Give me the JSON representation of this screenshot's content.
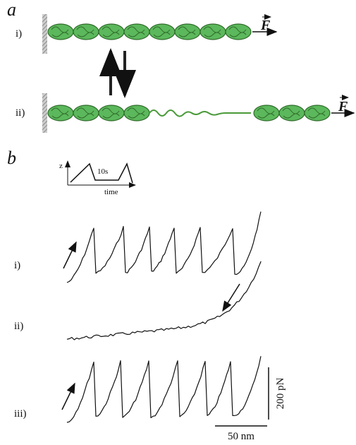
{
  "panel_a": {
    "label": "a",
    "rows": [
      {
        "label": "i)",
        "force": "F"
      },
      {
        "label": "ii)",
        "force": "F"
      }
    ]
  },
  "panel_b": {
    "label": "b",
    "inset": {
      "z_axis": "z",
      "interval": "10s",
      "time_axis": "time"
    },
    "traces": [
      {
        "label": "i)"
      },
      {
        "label": "ii)"
      },
      {
        "label": "iii)"
      }
    ],
    "scale_bars": {
      "force": "200 pN",
      "extension": "50 nm"
    }
  }
}
